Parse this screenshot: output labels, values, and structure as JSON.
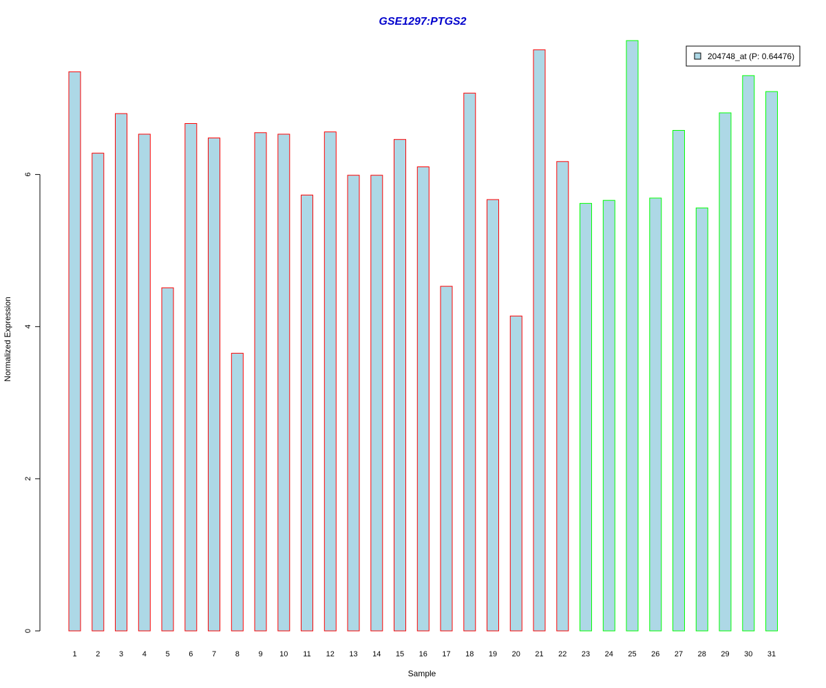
{
  "chart_data": {
    "type": "bar",
    "title": "GSE1297:PTGS2",
    "xlabel": "Sample",
    "ylabel": "Normalized Expression",
    "categories": [
      "1",
      "2",
      "3",
      "4",
      "5",
      "6",
      "7",
      "8",
      "9",
      "10",
      "11",
      "12",
      "13",
      "14",
      "15",
      "16",
      "17",
      "18",
      "19",
      "20",
      "21",
      "22",
      "23",
      "24",
      "25",
      "26",
      "27",
      "28",
      "29",
      "30",
      "31"
    ],
    "series": [
      {
        "name": "204748_at (P: 0.64476)",
        "values": [
          7.35,
          6.28,
          6.8,
          6.53,
          4.51,
          6.67,
          6.48,
          3.65,
          6.55,
          6.53,
          5.73,
          6.56,
          5.99,
          5.99,
          6.46,
          6.1,
          4.53,
          7.07,
          5.67,
          4.14,
          7.64,
          6.17,
          5.62,
          5.66,
          7.76,
          5.69,
          6.58,
          5.56,
          6.81,
          7.3,
          7.09
        ]
      }
    ],
    "groups": [
      {
        "from": 1,
        "to": 22,
        "border_color": "#ff0000"
      },
      {
        "from": 23,
        "to": 31,
        "border_color": "#00ff00"
      }
    ],
    "yticks": [
      0,
      2,
      4,
      6
    ],
    "ylim": [
      0,
      7.76
    ],
    "fill_color": "#add8e6",
    "title_color": "#0000cc",
    "legend_position": "top-right",
    "grid": false
  }
}
